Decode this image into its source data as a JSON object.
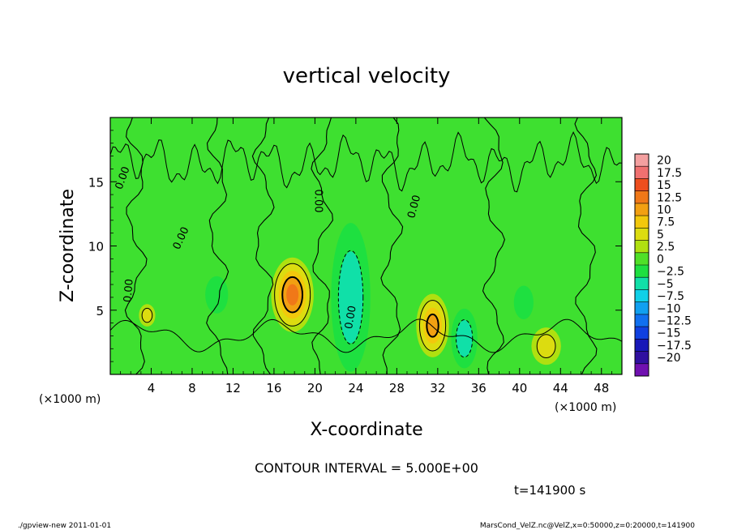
{
  "chart_data": {
    "type": "heatmap",
    "title": "vertical velocity",
    "xlabel": "X-coordinate",
    "ylabel": "Z-coordinate",
    "x_unit_left": "(×1000 m)",
    "x_unit_right": "(×1000 m)",
    "xlim": [
      0,
      50
    ],
    "ylim": [
      0,
      20
    ],
    "xticks": [
      "4",
      "8",
      "12",
      "16",
      "20",
      "24",
      "28",
      "32",
      "36",
      "40",
      "44",
      "48"
    ],
    "yticks": [
      "5",
      "10",
      "15"
    ],
    "contour_interval_text": "CONTOUR INTERVAL = 5.000E+00",
    "time_text": "t=141900 s",
    "contour_labels": [
      "0.00",
      "0.00",
      "0.00",
      "0.00",
      "0.00",
      "0.00"
    ],
    "colorbar": {
      "labels": [
        "20",
        "17.5",
        "15",
        "12.5",
        "10",
        "7.5",
        "5",
        "2.5",
        "0",
        "-2.5",
        "-5",
        "-7.5",
        "-10",
        "-12.5",
        "-15",
        "-17.5",
        "-20"
      ],
      "colors": [
        "#f4a0a0",
        "#f07070",
        "#ee4e1e",
        "#f07818",
        "#f2a012",
        "#f2c80c",
        "#dcdc10",
        "#b0e010",
        "#50e028",
        "#1ee040",
        "#10e0a8",
        "#10d0e8",
        "#10a0f0",
        "#1070f0",
        "#1040e0",
        "#1818b8",
        "#3010a0",
        "#7010b0"
      ]
    },
    "blobs": [
      {
        "x": 17.8,
        "z": 6.2,
        "value": 12.5,
        "rx": 1.3,
        "rz": 2.0
      },
      {
        "x": 31.5,
        "z": 3.8,
        "value": 11,
        "rx": 1.0,
        "rz": 1.7
      },
      {
        "x": 42.6,
        "z": 2.2,
        "value": 6,
        "rx": 0.9,
        "rz": 1.0
      },
      {
        "x": 3.6,
        "z": 4.6,
        "value": 5,
        "rx": 0.5,
        "rz": 0.6
      },
      {
        "x": 23.5,
        "z": 6.0,
        "value": -5,
        "rx": 1.2,
        "rz": 4.0
      },
      {
        "x": 34.6,
        "z": 2.8,
        "value": -5.5,
        "rx": 0.8,
        "rz": 1.6
      },
      {
        "x": 10.4,
        "z": 6.2,
        "value": -2.5,
        "rx": 0.7,
        "rz": 1.0
      },
      {
        "x": 40.4,
        "z": 5.6,
        "value": -2.5,
        "rx": 0.6,
        "rz": 0.9
      }
    ]
  },
  "footer": {
    "left": "./gpview-new   2011-01-01",
    "right": "MarsCond_VelZ.nc@VelZ,x=0:50000,z=0:20000,t=141900"
  }
}
